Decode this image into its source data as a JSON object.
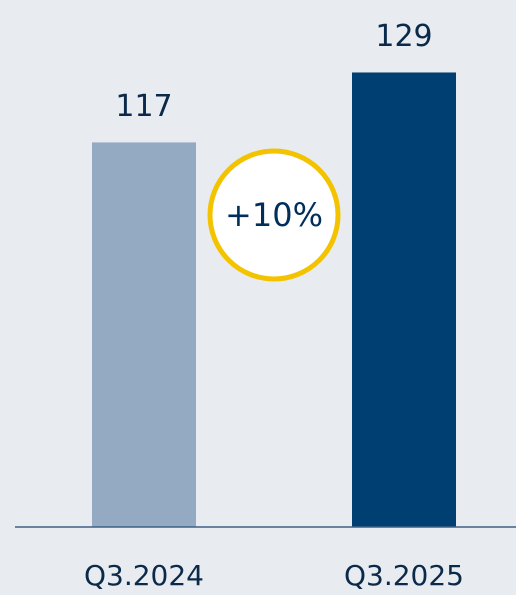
{
  "chart_data": {
    "type": "bar",
    "categories": [
      "Q3.2024",
      "Q3.2025"
    ],
    "values": [
      117,
      129
    ],
    "colors": [
      "#93aac2",
      "#003f72"
    ],
    "ylim": [
      51,
      132
    ],
    "annotation": "+10%"
  }
}
